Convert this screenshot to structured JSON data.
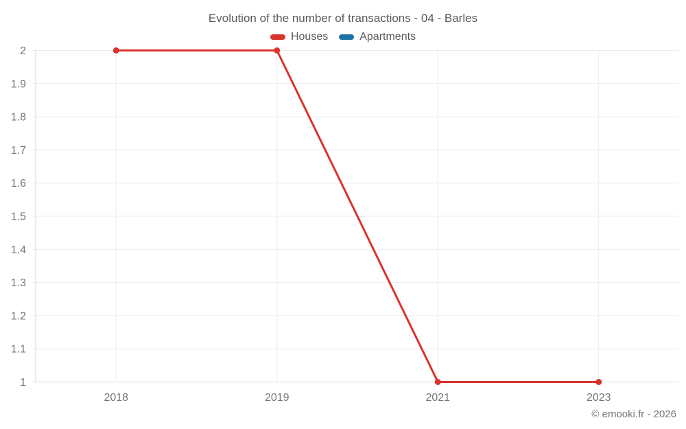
{
  "title": "Evolution of the number of transactions - 04 - Barles",
  "footer": "© emooki.fr - 2026",
  "colors": {
    "houses": "#d9342b",
    "apartments": "#1b74a3",
    "title_text": "#595959",
    "tick_text": "#757575",
    "gridline": "#ececec",
    "axis_line": "#d9d9d9",
    "background": "#ffffff"
  },
  "chart_data": {
    "type": "line",
    "title": "Evolution of the number of transactions - 04 - Barles",
    "categories": [
      "2018",
      "2019",
      "2021",
      "2023"
    ],
    "series": [
      {
        "name": "Houses",
        "color": "#d9342b",
        "values": [
          2,
          2,
          1,
          1
        ]
      },
      {
        "name": "Apartments",
        "color": "#1b74a3",
        "values": []
      }
    ],
    "xlabel": "",
    "ylabel": "",
    "ylim": [
      1,
      2
    ],
    "ytick_step": 0.1,
    "ytick_labels": [
      "1",
      "1.1",
      "1.2",
      "1.3",
      "1.4",
      "1.5",
      "1.6",
      "1.7",
      "1.8",
      "1.9",
      "2"
    ],
    "grid": true,
    "legend_position": "top",
    "marker": "circle"
  }
}
